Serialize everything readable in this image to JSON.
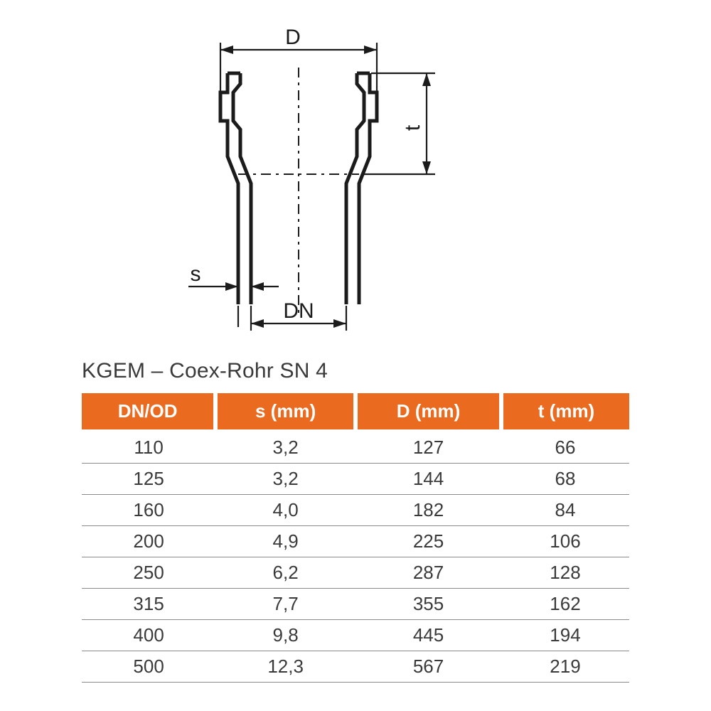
{
  "diagram": {
    "labels": {
      "D": "D",
      "t": "t",
      "s": "s",
      "DN": "DN"
    },
    "colors": {
      "line": "#1b1b1b",
      "background": "#ffffff"
    },
    "stroke_width_outline": 5,
    "stroke_width_dim": 2.2,
    "font_size_label": 30
  },
  "table": {
    "title": "KGEM – Coex-Rohr SN 4",
    "columns": [
      "DN/OD",
      "s (mm)",
      "D (mm)",
      "t (mm)"
    ],
    "rows": [
      [
        "110",
        "3,2",
        "127",
        "66"
      ],
      [
        "125",
        "3,2",
        "144",
        "68"
      ],
      [
        "160",
        "4,0",
        "182",
        "84"
      ],
      [
        "200",
        "4,9",
        "225",
        "106"
      ],
      [
        "250",
        "6,2",
        "287",
        "128"
      ],
      [
        "315",
        "7,7",
        "355",
        "162"
      ],
      [
        "400",
        "9,8",
        "445",
        "194"
      ],
      [
        "500",
        "12,3",
        "567",
        "219"
      ]
    ],
    "header_bg": "#ea6b1f",
    "header_fg": "#ffffff",
    "row_fg": "#3a3a3a",
    "row_border": "#8a8a8a",
    "col_gap_color": "#ffffff",
    "title_fontsize": 30,
    "cell_fontsize": 26
  }
}
